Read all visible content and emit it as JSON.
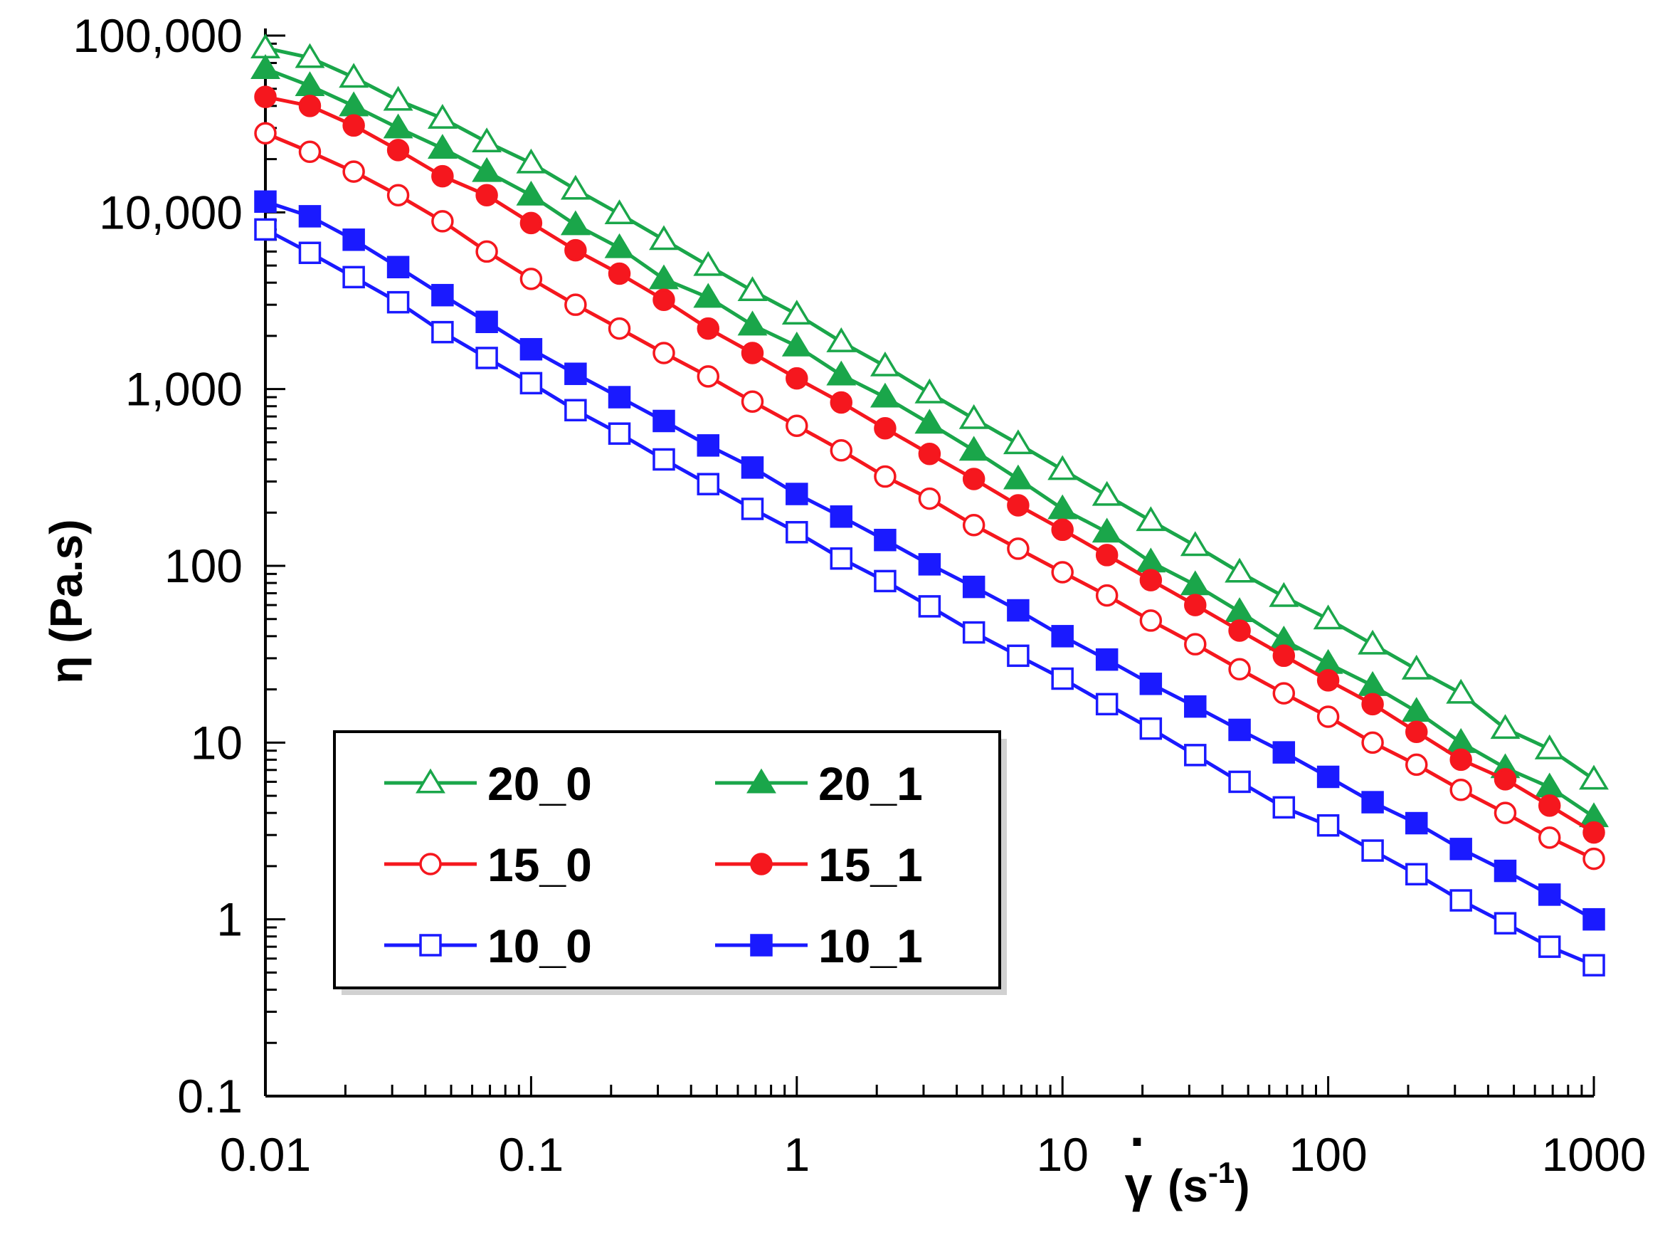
{
  "chart_data": {
    "type": "line",
    "title": "",
    "xlabel": "γ̇ (s⁻¹)",
    "xlabel_parts": {
      "symbol": "γ",
      "dot": "·",
      "unit_open": "(s",
      "unit_exp": "-1",
      "unit_close": ")"
    },
    "ylabel": "η (Pa.s)",
    "xscale": "log",
    "yscale": "log",
    "xlim": [
      0.01,
      1000
    ],
    "ylim": [
      0.1,
      100000
    ],
    "xticks": [
      0.01,
      0.1,
      1,
      10,
      100,
      1000
    ],
    "xtick_labels": [
      "0.01",
      "0.1",
      "1",
      "10",
      "100",
      "1000"
    ],
    "yticks": [
      0.1,
      1,
      10,
      100,
      1000,
      10000,
      100000
    ],
    "ytick_labels": [
      "0.1",
      "1",
      "10",
      "100",
      "1,000",
      "10,000",
      "100,000"
    ],
    "grid": false,
    "legend_position": "lower-left",
    "legend_columns": 2,
    "x": [
      0.01,
      0.0147,
      0.0215,
      0.0316,
      0.0464,
      0.0681,
      0.1,
      0.147,
      0.215,
      0.316,
      0.464,
      0.681,
      1,
      1.47,
      2.15,
      3.16,
      4.64,
      6.81,
      10,
      14.7,
      21.5,
      31.6,
      46.4,
      68.1,
      100,
      147,
      215,
      316,
      464,
      681,
      1000
    ],
    "series": [
      {
        "name": "20_0",
        "color": "#1aa64a",
        "marker": "triangle",
        "filled": false,
        "values": [
          85000,
          75000,
          58000,
          43000,
          34000,
          25000,
          19000,
          13500,
          9800,
          7000,
          5000,
          3600,
          2650,
          1850,
          1350,
          950,
          680,
          490,
          350,
          250,
          180,
          130,
          92,
          67,
          50,
          36,
          26,
          19,
          12,
          9.2,
          6.2
        ]
      },
      {
        "name": "20_1",
        "color": "#1aa64a",
        "marker": "triangle",
        "filled": true,
        "values": [
          65000,
          52000,
          40000,
          30000,
          23000,
          17000,
          12500,
          8500,
          6300,
          4200,
          3300,
          2300,
          1750,
          1200,
          900,
          640,
          450,
          310,
          210,
          155,
          105,
          78,
          55,
          38,
          28,
          21,
          15,
          10,
          7.2,
          5.6,
          3.8
        ]
      },
      {
        "name": "15_0",
        "color": "#f5171e",
        "marker": "circle",
        "filled": false,
        "values": [
          28000,
          22000,
          17000,
          12500,
          8900,
          6000,
          4200,
          3000,
          2200,
          1600,
          1180,
          850,
          620,
          450,
          320,
          240,
          170,
          125,
          92,
          68,
          49,
          36,
          26,
          19,
          14,
          10,
          7.5,
          5.4,
          4,
          2.9,
          2.2
        ]
      },
      {
        "name": "15_1",
        "color": "#f5171e",
        "marker": "circle",
        "filled": true,
        "values": [
          45000,
          40000,
          31000,
          22500,
          16000,
          12500,
          8700,
          6100,
          4500,
          3200,
          2200,
          1600,
          1150,
          840,
          600,
          430,
          310,
          220,
          160,
          115,
          83,
          60,
          43,
          31,
          22.5,
          16.5,
          11.5,
          8,
          6.2,
          4.4,
          3.1
        ]
      },
      {
        "name": "10_0",
        "color": "#1a1aff",
        "marker": "square",
        "filled": false,
        "values": [
          8000,
          5900,
          4300,
          3100,
          2100,
          1500,
          1080,
          760,
          560,
          400,
          290,
          210,
          155,
          110,
          82,
          59,
          42,
          31,
          23,
          16.5,
          12,
          8.5,
          6,
          4.3,
          3.4,
          2.45,
          1.8,
          1.28,
          0.95,
          0.7,
          0.55
        ]
      },
      {
        "name": "10_1",
        "color": "#1a1aff",
        "marker": "square",
        "filled": true,
        "values": [
          11500,
          9500,
          7000,
          4900,
          3400,
          2400,
          1680,
          1220,
          900,
          660,
          480,
          360,
          255,
          190,
          140,
          102,
          76,
          56,
          40,
          29.5,
          21.5,
          16,
          11.8,
          8.8,
          6.4,
          4.6,
          3.5,
          2.5,
          1.88,
          1.38,
          1.0
        ]
      }
    ]
  }
}
